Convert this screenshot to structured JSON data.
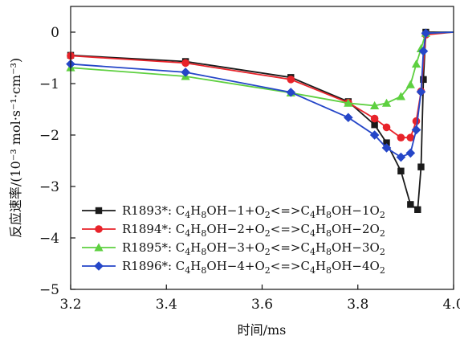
{
  "chart_data": {
    "type": "line",
    "xlabel": "时间/ms",
    "ylabel": "反应速率/(10⁻³ mol·s⁻¹·cm⁻³)",
    "xlim": [
      3.2,
      4.0
    ],
    "ylim": [
      -5,
      0.5
    ],
    "xticks": [
      "3.2",
      "3.4",
      "3.6",
      "3.8",
      "4.0"
    ],
    "yticks": [
      "0",
      "−1",
      "−2",
      "−3",
      "−4",
      "−5"
    ],
    "grid": false,
    "legend_position": "lower-left",
    "series": [
      {
        "name": "R1893*: C4H8OH−1+O2<=>C4H8OH−1O2",
        "color": "#1a1a1a",
        "marker": "square",
        "x": [
          3.2,
          3.44,
          3.66,
          3.78,
          3.835,
          3.86,
          3.89,
          3.91,
          3.925,
          3.932,
          3.937,
          3.942,
          4.0
        ],
        "y": [
          -0.45,
          -0.57,
          -0.88,
          -1.35,
          -1.8,
          -2.15,
          -2.7,
          -3.35,
          -3.45,
          -2.62,
          -0.92,
          0.0,
          0.0
        ]
      },
      {
        "name": "R1894*: C4H8OH−2+O2<=>C4H8OH−2O2",
        "color": "#e8232a",
        "marker": "circle",
        "x": [
          3.2,
          3.44,
          3.66,
          3.78,
          3.835,
          3.86,
          3.89,
          3.91,
          3.922,
          3.932,
          3.942,
          4.0
        ],
        "y": [
          -0.46,
          -0.6,
          -0.92,
          -1.37,
          -1.68,
          -1.85,
          -2.05,
          -2.05,
          -1.73,
          -1.15,
          -0.05,
          0.0
        ]
      },
      {
        "name": "R1895*: C4H8OH−3+O2<=>C4H8OH−3O2",
        "color": "#5ed040",
        "marker": "triangle",
        "x": [
          3.2,
          3.44,
          3.66,
          3.78,
          3.835,
          3.86,
          3.89,
          3.91,
          3.922,
          3.932,
          3.942,
          4.0
        ],
        "y": [
          -0.69,
          -0.86,
          -1.18,
          -1.38,
          -1.43,
          -1.38,
          -1.25,
          -1.02,
          -0.62,
          -0.32,
          -0.02,
          0.0
        ]
      },
      {
        "name": "R1896*: C4H8OH−4+O2<=>C4H8OH−4O2",
        "color": "#2546c8",
        "marker": "diamond",
        "x": [
          3.2,
          3.44,
          3.66,
          3.78,
          3.835,
          3.86,
          3.89,
          3.91,
          3.922,
          3.932,
          3.937,
          3.942,
          4.0
        ],
        "y": [
          -0.62,
          -0.78,
          -1.17,
          -1.66,
          -2.0,
          -2.25,
          -2.43,
          -2.35,
          -1.9,
          -1.16,
          -0.37,
          -0.02,
          0.0
        ]
      }
    ]
  }
}
